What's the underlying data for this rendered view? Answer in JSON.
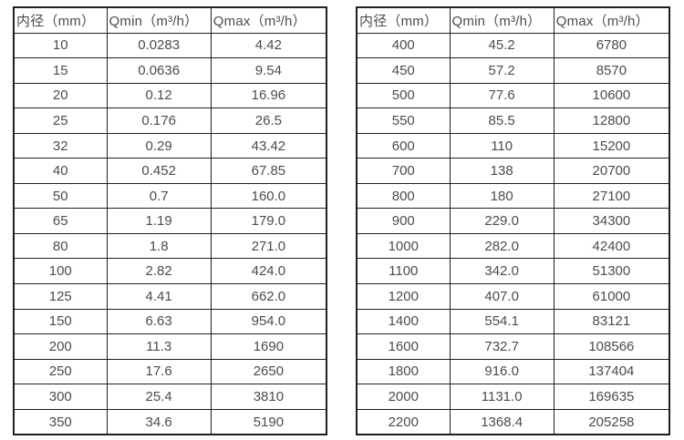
{
  "page": {
    "background": "#ffffff",
    "text_color": "#4c4c4c",
    "border_color": "#1f1f1f"
  },
  "tables": {
    "left": {
      "headers": [
        "内径（mm）",
        "Qmin（m³/h）",
        "Qmax（m³/h）"
      ],
      "rows": [
        [
          "10",
          "0.0283",
          "4.42"
        ],
        [
          "15",
          "0.0636",
          "9.54"
        ],
        [
          "20",
          "0.12",
          "16.96"
        ],
        [
          "25",
          "0.176",
          "26.5"
        ],
        [
          "32",
          "0.29",
          "43.42"
        ],
        [
          "40",
          "0.452",
          "67.85"
        ],
        [
          "50",
          "0.7",
          "160.0"
        ],
        [
          "65",
          "1.19",
          "179.0"
        ],
        [
          "80",
          "1.8",
          "271.0"
        ],
        [
          "100",
          "2.82",
          "424.0"
        ],
        [
          "125",
          "4.41",
          "662.0"
        ],
        [
          "150",
          "6.63",
          "954.0"
        ],
        [
          "200",
          "11.3",
          "1690"
        ],
        [
          "250",
          "17.6",
          "2650"
        ],
        [
          "300",
          "25.4",
          "3810"
        ],
        [
          "350",
          "34.6",
          "5190"
        ]
      ]
    },
    "right": {
      "headers": [
        "内径（mm）",
        "Qmin（m³/h）",
        "Qmax（m³/h）"
      ],
      "rows": [
        [
          "400",
          "45.2",
          "6780"
        ],
        [
          "450",
          "57.2",
          "8570"
        ],
        [
          "500",
          "77.6",
          "10600"
        ],
        [
          "550",
          "85.5",
          "12800"
        ],
        [
          "600",
          "110",
          "15200"
        ],
        [
          "700",
          "138",
          "20700"
        ],
        [
          "800",
          "180",
          "27100"
        ],
        [
          "900",
          "229.0",
          "34300"
        ],
        [
          "1000",
          "282.0",
          "42400"
        ],
        [
          "1100",
          "342.0",
          "51300"
        ],
        [
          "1200",
          "407.0",
          "61000"
        ],
        [
          "1400",
          "554.1",
          "83121"
        ],
        [
          "1600",
          "732.7",
          "108566"
        ],
        [
          "1800",
          "916.0",
          "137404"
        ],
        [
          "2000",
          "1131.0",
          "169635"
        ],
        [
          "2200",
          "1368.4",
          "205258"
        ]
      ]
    }
  }
}
